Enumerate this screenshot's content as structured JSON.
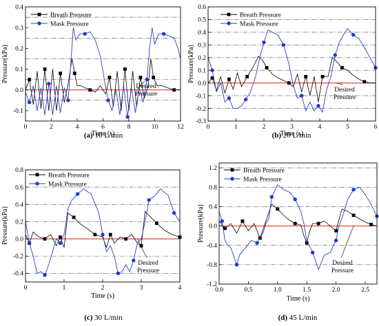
{
  "colors": {
    "breath": "#000000",
    "mask": "#2b3fc7",
    "mask_marker": "#1a3ad6",
    "desired": "#e8362c",
    "grid": "#555555",
    "axis": "#000000"
  },
  "chart_data": [
    {
      "type": "line",
      "caption_id": "(a)",
      "caption_text": " 10 L/min",
      "ylabel": "Pressure(kPa)",
      "xlabel": "Time (s)",
      "xlim": [
        0,
        12
      ],
      "ylim": [
        -0.15,
        0.4
      ],
      "xticks": [
        0,
        2,
        4,
        6,
        8,
        10,
        12
      ],
      "yticks": [
        -0.1,
        0.0,
        0.1,
        0.2,
        0.3,
        0.4
      ],
      "ytick_labels": [
        "-0.1",
        "0.0",
        "0.1",
        "0.2",
        "0.3",
        "0.4"
      ],
      "grid_values": [
        -0.05,
        0.05,
        0.15,
        0.25,
        0.35
      ],
      "legend_placement": "top-left",
      "annotation": [
        "Desired",
        "Pressure"
      ],
      "desired_value": 0,
      "series": [
        {
          "name": "Breath Pressure",
          "marker": "square",
          "x": [
            0,
            0.3,
            0.6,
            0.9,
            1.2,
            1.5,
            1.8,
            2.1,
            2.4,
            2.7,
            3.0,
            3.3,
            3.6,
            3.8,
            4.0,
            4.3,
            4.6,
            5.0,
            5.4,
            5.8,
            6.2,
            6.5,
            6.8,
            7.1,
            7.4,
            7.7,
            8.0,
            8.3,
            8.6,
            8.9,
            9.2,
            9.5,
            9.7,
            9.9,
            10.2,
            10.6,
            11.0,
            11.5,
            12.0
          ],
          "y": [
            0.0,
            0.05,
            -0.07,
            0.09,
            -0.09,
            0.1,
            -0.1,
            0.1,
            -0.1,
            0.08,
            -0.06,
            0.03,
            0.15,
            0.08,
            0.02,
            0.02,
            0.01,
            0.0,
            -0.01,
            0.02,
            -0.02,
            0.06,
            -0.08,
            0.09,
            -0.1,
            0.1,
            -0.1,
            0.09,
            -0.08,
            0.06,
            -0.04,
            0.02,
            0.15,
            0.06,
            0.02,
            0.02,
            0.01,
            0.0,
            0.0
          ]
        },
        {
          "name": "Mask Pressure",
          "marker": "circle",
          "x": [
            0,
            0.3,
            0.6,
            0.9,
            1.2,
            1.5,
            1.8,
            2.1,
            2.4,
            2.7,
            3.0,
            3.3,
            3.5,
            3.7,
            3.9,
            4.2,
            4.6,
            5.0,
            5.4,
            5.8,
            6.1,
            6.4,
            6.7,
            7.0,
            7.3,
            7.6,
            7.9,
            8.2,
            8.5,
            8.8,
            9.1,
            9.4,
            9.6,
            9.8,
            10.0,
            10.3,
            10.7,
            11.1,
            11.5,
            11.8,
            12.0
          ],
          "y": [
            -0.01,
            -0.06,
            0.02,
            -0.1,
            0.01,
            -0.12,
            0.03,
            -0.12,
            0.02,
            -0.11,
            0.01,
            -0.05,
            0.12,
            0.3,
            0.24,
            0.27,
            0.27,
            0.28,
            0.24,
            0.16,
            0.05,
            -0.05,
            -0.1,
            0.0,
            -0.12,
            0.02,
            -0.13,
            0.01,
            -0.11,
            0.01,
            -0.06,
            0.05,
            0.2,
            0.3,
            0.22,
            0.27,
            0.27,
            0.26,
            0.25,
            0.2,
            0.15
          ]
        }
      ]
    },
    {
      "type": "line",
      "caption_id": "(b)",
      "caption_text": " 20 L/min",
      "ylabel": "Pressure(kPa)",
      "xlabel": "Time (s)",
      "xlim": [
        0,
        6
      ],
      "ylim": [
        -0.3,
        0.6
      ],
      "xticks": [
        0,
        1,
        2,
        3,
        4,
        5,
        6
      ],
      "yticks": [
        -0.3,
        -0.2,
        -0.1,
        0.0,
        0.1,
        0.2,
        0.3,
        0.4,
        0.5,
        0.6
      ],
      "ytick_labels": [
        "-0.3",
        "-0.2",
        "-0.1",
        "0.0",
        "0.1",
        "0.2",
        "0.3",
        "0.4",
        "0.5",
        "0.6"
      ],
      "grid_values": [
        -0.2,
        -0.1,
        0.1,
        0.2,
        0.3,
        0.4,
        0.5
      ],
      "legend_placement": "top-center",
      "annotation": [
        "Desired",
        "Pressure"
      ],
      "desired_value": 0,
      "series": [
        {
          "name": "Breath Pressure",
          "marker": "square",
          "x": [
            0,
            0.15,
            0.3,
            0.45,
            0.6,
            0.75,
            0.9,
            1.05,
            1.2,
            1.4,
            1.6,
            1.8,
            1.95,
            2.1,
            2.3,
            2.5,
            2.7,
            2.9,
            3.05,
            3.2,
            3.35,
            3.5,
            3.65,
            3.8,
            3.95,
            4.1,
            4.3,
            4.45,
            4.6,
            4.8,
            5.0,
            5.2,
            5.4,
            5.6,
            5.8,
            6.0
          ],
          "y": [
            0.0,
            0.04,
            -0.06,
            0.05,
            -0.08,
            0.03,
            -0.05,
            0.08,
            -0.03,
            0.05,
            0.12,
            0.21,
            0.18,
            0.12,
            0.07,
            0.04,
            0.02,
            0.0,
            -0.03,
            0.07,
            -0.07,
            0.05,
            -0.1,
            0.05,
            -0.15,
            0.05,
            0.05,
            0.2,
            0.17,
            0.12,
            0.1,
            0.06,
            0.03,
            0.01,
            0.0,
            0.0
          ]
        },
        {
          "name": "Mask Pressure",
          "marker": "circle",
          "x": [
            0,
            0.15,
            0.3,
            0.45,
            0.6,
            0.75,
            0.9,
            1.05,
            1.2,
            1.35,
            1.5,
            1.7,
            1.85,
            2.0,
            2.15,
            2.3,
            2.5,
            2.7,
            2.9,
            3.05,
            3.2,
            3.35,
            3.5,
            3.65,
            3.8,
            3.95,
            4.1,
            4.25,
            4.4,
            4.55,
            4.7,
            4.85,
            5.0,
            5.2,
            5.4,
            5.6,
            5.8,
            6.0
          ],
          "y": [
            0.2,
            0.1,
            -0.07,
            0.0,
            -0.15,
            -0.12,
            -0.2,
            -0.2,
            -0.18,
            -0.13,
            -0.08,
            0.05,
            0.2,
            0.32,
            0.42,
            0.4,
            0.38,
            0.3,
            0.15,
            -0.02,
            -0.12,
            -0.1,
            -0.22,
            -0.15,
            -0.22,
            -0.18,
            -0.23,
            -0.05,
            0.05,
            0.22,
            0.32,
            0.38,
            0.43,
            0.38,
            0.35,
            0.28,
            0.2,
            0.12
          ]
        }
      ]
    },
    {
      "type": "line",
      "caption_id": "(c)",
      "caption_text": " 30 L/min",
      "ylabel": "Pressure(kPa)",
      "xlabel": "Time (s)",
      "xlim": [
        0,
        4
      ],
      "ylim": [
        -0.5,
        0.8
      ],
      "xticks": [
        0,
        1,
        2,
        3,
        4
      ],
      "yticks": [
        -0.4,
        -0.2,
        0.0,
        0.2,
        0.4,
        0.6,
        0.8
      ],
      "ytick_labels": [
        "-0.4",
        "-0.2",
        "0.0",
        "0.2",
        "0.4",
        "0.6",
        "0.8"
      ],
      "grid_values": [
        -0.4,
        -0.2,
        0.2,
        0.4,
        0.6,
        0.8
      ],
      "legend_placement": "top-left",
      "annotation": [
        "Desired",
        "Pressure"
      ],
      "desired_value": 0,
      "series": [
        {
          "name": "Breath Pressure",
          "marker": "square",
          "x": [
            0,
            0.1,
            0.2,
            0.35,
            0.5,
            0.65,
            0.8,
            0.9,
            1.0,
            1.1,
            1.25,
            1.4,
            1.6,
            1.8,
            2.0,
            2.1,
            2.2,
            2.3,
            2.45,
            2.6,
            2.75,
            2.9,
            3.0,
            3.1,
            3.25,
            3.4,
            3.6,
            3.8,
            4.0
          ],
          "y": [
            0.05,
            -0.05,
            0.08,
            0.02,
            0.0,
            0.05,
            -0.08,
            0.02,
            -0.1,
            0.3,
            0.25,
            0.18,
            0.12,
            0.05,
            0.02,
            -0.1,
            0.05,
            -0.05,
            0.02,
            0.0,
            0.05,
            -0.05,
            -0.08,
            0.32,
            0.25,
            0.18,
            0.1,
            0.05,
            0.02
          ]
        },
        {
          "name": "Mask Pressure",
          "marker": "circle",
          "x": [
            0,
            0.1,
            0.2,
            0.3,
            0.4,
            0.5,
            0.6,
            0.7,
            0.8,
            0.9,
            1.0,
            1.1,
            1.2,
            1.35,
            1.5,
            1.7,
            1.9,
            2.0,
            2.1,
            2.2,
            2.3,
            2.4,
            2.5,
            2.6,
            2.7,
            2.8,
            2.9,
            3.0,
            3.1,
            3.2,
            3.35,
            3.5,
            3.7,
            3.85,
            4.0
          ],
          "y": [
            0.2,
            -0.05,
            -0.2,
            -0.4,
            -0.38,
            -0.42,
            -0.3,
            -0.15,
            0.0,
            -0.05,
            0.05,
            0.35,
            0.45,
            0.52,
            0.58,
            0.52,
            0.3,
            0.05,
            -0.15,
            -0.08,
            -0.2,
            -0.4,
            -0.38,
            -0.3,
            -0.38,
            -0.25,
            -0.05,
            0.0,
            0.2,
            0.45,
            0.5,
            0.58,
            0.5,
            0.3,
            0.2
          ]
        }
      ]
    },
    {
      "type": "line",
      "caption_id": "(d)",
      "caption_text": " 45 L/min",
      "ylabel": "Pressure(kPa)",
      "xlabel": "Time (s)",
      "xlim": [
        0,
        2.7
      ],
      "ylim": [
        -1.2,
        1.3
      ],
      "xticks": [
        0.0,
        0.5,
        1.0,
        1.5,
        2.0,
        2.5
      ],
      "yticks": [
        -1.2,
        -0.8,
        -0.4,
        0.0,
        0.4,
        0.8,
        1.2
      ],
      "ytick_labels": [
        "-1.2",
        "-0.8",
        "-0.4",
        "0.0",
        "0.4",
        "0.8",
        "1.2"
      ],
      "grid_values": [
        -1.2,
        -0.8,
        -0.4,
        0.4,
        0.8,
        1.2
      ],
      "legend_placement": "top-left",
      "annotation": [
        "Desired",
        "Pressure"
      ],
      "desired_value": 0,
      "series": [
        {
          "name": "Breath Pressure",
          "marker": "square",
          "x": [
            0,
            0.1,
            0.2,
            0.3,
            0.4,
            0.5,
            0.6,
            0.7,
            0.8,
            0.9,
            1.0,
            1.1,
            1.2,
            1.3,
            1.4,
            1.45,
            1.5,
            1.55,
            1.6,
            1.7,
            1.8,
            1.9,
            2.0,
            2.1,
            2.2,
            2.3,
            2.4,
            2.5,
            2.6,
            2.7
          ],
          "y": [
            0.1,
            -0.05,
            0.05,
            -0.15,
            0.1,
            -0.1,
            0.05,
            -0.25,
            0.1,
            0.45,
            0.35,
            0.22,
            0.12,
            0.05,
            0.02,
            -0.2,
            -0.35,
            -0.1,
            0.05,
            0.05,
            0.1,
            0.0,
            -0.1,
            0.35,
            0.3,
            0.22,
            0.15,
            0.08,
            0.03,
            0.0
          ]
        },
        {
          "name": "Mask Pressure",
          "marker": "circle",
          "x": [
            0,
            0.05,
            0.1,
            0.15,
            0.2,
            0.3,
            0.35,
            0.45,
            0.55,
            0.65,
            0.75,
            0.8,
            0.85,
            0.9,
            1.0,
            1.1,
            1.2,
            1.3,
            1.4,
            1.45,
            1.5,
            1.6,
            1.7,
            1.8,
            1.9,
            2.0,
            2.05,
            2.1,
            2.2,
            2.3,
            2.4,
            2.5,
            2.6,
            2.7
          ],
          "y": [
            0.3,
            0.1,
            -0.3,
            -0.4,
            -0.45,
            -0.8,
            -0.6,
            -0.45,
            -0.3,
            -0.35,
            -0.15,
            0.05,
            0.15,
            0.6,
            0.85,
            0.75,
            0.7,
            0.55,
            0.3,
            0.05,
            -0.3,
            -0.55,
            -0.9,
            -0.6,
            -0.55,
            -0.3,
            0.0,
            0.15,
            0.55,
            0.75,
            0.8,
            0.65,
            0.45,
            0.2
          ]
        }
      ]
    }
  ]
}
